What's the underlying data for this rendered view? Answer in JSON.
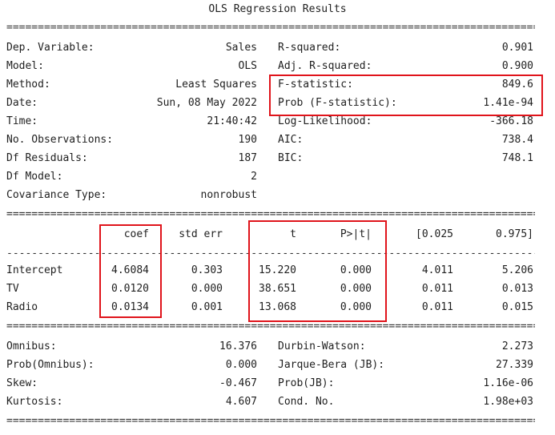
{
  "title": "OLS Regression Results",
  "rule_double": "=================================================================================================",
  "rule_single": "-------------------------------------------------------------------------------------------------",
  "summary": {
    "dep_variable": {
      "label": "Dep. Variable:",
      "value": "Sales"
    },
    "model": {
      "label": "Model:",
      "value": "OLS"
    },
    "method": {
      "label": "Method:",
      "value": "Least Squares"
    },
    "date": {
      "label": "Date:",
      "value": "Sun, 08 May 2022"
    },
    "time": {
      "label": "Time:",
      "value": "21:40:42"
    },
    "no_obs": {
      "label": "No. Observations:",
      "value": "190"
    },
    "df_resid": {
      "label": "Df Residuals:",
      "value": "187"
    },
    "df_model": {
      "label": "Df Model:",
      "value": "2"
    },
    "cov_type": {
      "label": "Covariance Type:",
      "value": "nonrobust"
    },
    "r_squared": {
      "label": "R-squared:",
      "value": "0.901"
    },
    "adj_r_squared": {
      "label": "Adj. R-squared:",
      "value": "0.900"
    },
    "f_stat": {
      "label": "F-statistic:",
      "value": "849.6"
    },
    "prob_f": {
      "label": "Prob (F-statistic):",
      "value": "1.41e-94"
    },
    "log_lik": {
      "label": "Log-Likelihood:",
      "value": "-366.18"
    },
    "aic": {
      "label": "AIC:",
      "value": "738.4"
    },
    "bic": {
      "label": "BIC:",
      "value": "748.1"
    }
  },
  "coef_table": {
    "headers": [
      "coef",
      "std err",
      "t",
      "P>|t|",
      "[0.025",
      "0.975]"
    ],
    "rows": [
      {
        "name": "Intercept",
        "values": [
          "4.6084",
          "0.303",
          "15.220",
          "0.000",
          "4.011",
          "5.206"
        ]
      },
      {
        "name": "TV",
        "values": [
          "0.0120",
          "0.000",
          "38.651",
          "0.000",
          "0.011",
          "0.013"
        ]
      },
      {
        "name": "Radio",
        "values": [
          "0.0134",
          "0.001",
          "13.068",
          "0.000",
          "0.011",
          "0.015"
        ]
      }
    ]
  },
  "diagnostics": {
    "omnibus": {
      "label": "Omnibus:",
      "value": "16.376"
    },
    "prob_omnibus": {
      "label": "Prob(Omnibus):",
      "value": "0.000"
    },
    "skew": {
      "label": "Skew:",
      "value": "-0.467"
    },
    "kurtosis": {
      "label": "Kurtosis:",
      "value": "4.607"
    },
    "durbin_watson": {
      "label": "Durbin-Watson:",
      "value": "2.273"
    },
    "jarque_bera": {
      "label": "Jarque-Bera (JB):",
      "value": "27.339"
    },
    "prob_jb": {
      "label": "Prob(JB):",
      "value": "1.16e-06"
    },
    "cond_no": {
      "label": "Cond. No.",
      "value": "1.98e+03"
    }
  },
  "highlight_color": "#e0141b"
}
